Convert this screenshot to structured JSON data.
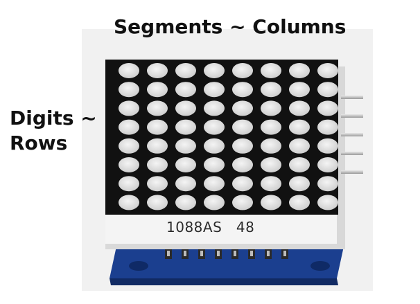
{
  "labels": {
    "segments": "Segments ~ Columns",
    "digits_line1": "Digits ~",
    "digits_line2": "Rows"
  },
  "module": {
    "part_number": "1088AS",
    "code": "48",
    "grid": {
      "rows": 8,
      "columns": 8
    },
    "pin_count": 5,
    "colors": {
      "matrix_face": "#111111",
      "led_dot": "#e6e6e6",
      "pcb": "#1b3f8f",
      "housing": "#f4f4f4"
    }
  }
}
